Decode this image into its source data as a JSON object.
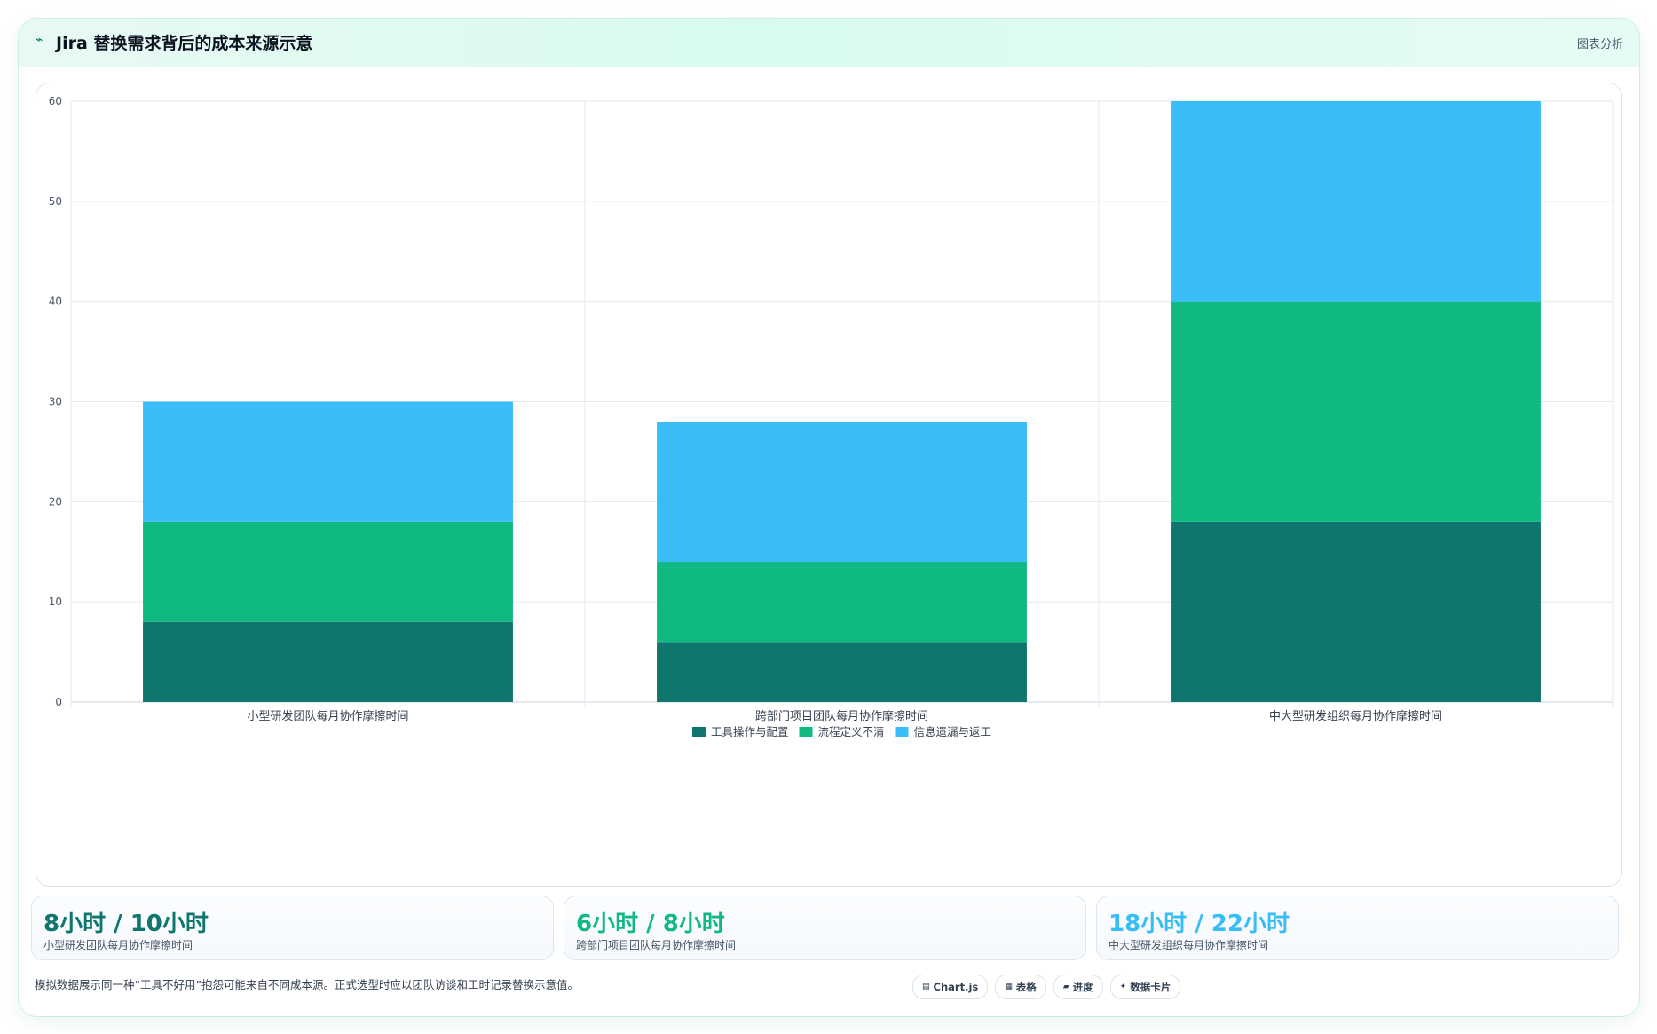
{
  "header": {
    "icon": "trend-line-icon",
    "title": "Jira 替换需求背后的成本来源示意",
    "right_label": "图表分析"
  },
  "chart_data": {
    "type": "bar",
    "stacked": true,
    "categories": [
      "小型研发团队每月协作摩擦时间",
      "跨部门项目团队每月协作摩擦时间",
      "中大型研发组织每月协作摩擦时间"
    ],
    "series": [
      {
        "name": "工具操作与配置",
        "color": "#0f766e",
        "values": [
          8,
          6,
          18
        ]
      },
      {
        "name": "流程定义不清",
        "color": "#10b981",
        "values": [
          10,
          8,
          22
        ]
      },
      {
        "name": "信息遗漏与返工",
        "color": "#38bdf8",
        "values": [
          12,
          14,
          20
        ]
      }
    ],
    "ylim": [
      0,
      60
    ],
    "yticks": [
      0,
      10,
      20,
      30,
      40,
      50,
      60
    ],
    "grid": true,
    "legend_position": "bottom"
  },
  "stats": [
    {
      "value": "8小时 / 10小时",
      "label": "小型研发团队每月协作摩擦时间",
      "color": "#0f766e"
    },
    {
      "value": "6小时 / 8小时",
      "label": "跨部门项目团队每月协作摩擦时间",
      "color": "#10b981"
    },
    {
      "value": "18小时 / 22小时",
      "label": "中大型研发组织每月协作摩擦时间",
      "color": "#38bdf8"
    }
  ],
  "footer": {
    "note": "模拟数据展示同一种“工具不好用”抱怨可能来自不同成本源。正式选型时应以团队访谈和工时记录替换示意值。"
  },
  "chips": [
    {
      "icon": "chart-icon",
      "glyph": "▤",
      "label": "Chart.js"
    },
    {
      "icon": "table-icon",
      "glyph": "▦",
      "label": "表格"
    },
    {
      "icon": "progress-icon",
      "glyph": "▰",
      "label": "进度"
    },
    {
      "icon": "sparkle-icon",
      "glyph": "✦",
      "label": "数据卡片"
    }
  ]
}
